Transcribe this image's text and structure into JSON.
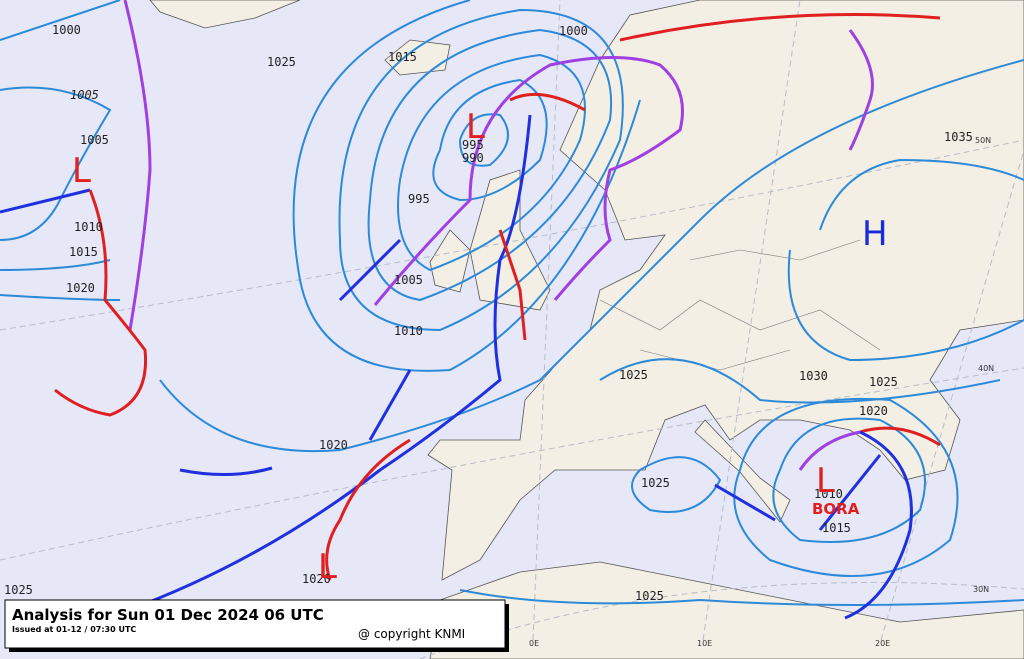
{
  "caption": {
    "title": "Analysis for Sun 01 Dec 2024 06 UTC",
    "issued": "Issued at 01-12 / 07:30 UTC",
    "copyright": "@ copyright KNMI"
  },
  "pressure_centers": [
    "L",
    "L",
    "L",
    "L",
    "H"
  ],
  "wind_label": "BORA",
  "isobar_labels": [
    1000,
    1025,
    1005,
    1005,
    1010,
    1015,
    1020,
    1015,
    1000,
    995,
    990,
    995,
    1005,
    1010,
    1020,
    1025,
    1030,
    1025,
    1020,
    1010,
    1015,
    1025,
    1025,
    1020,
    1025,
    1035
  ],
  "graticule_labels": [
    "50N",
    "40N",
    "30N",
    "0E",
    "10E",
    "20E"
  ]
}
